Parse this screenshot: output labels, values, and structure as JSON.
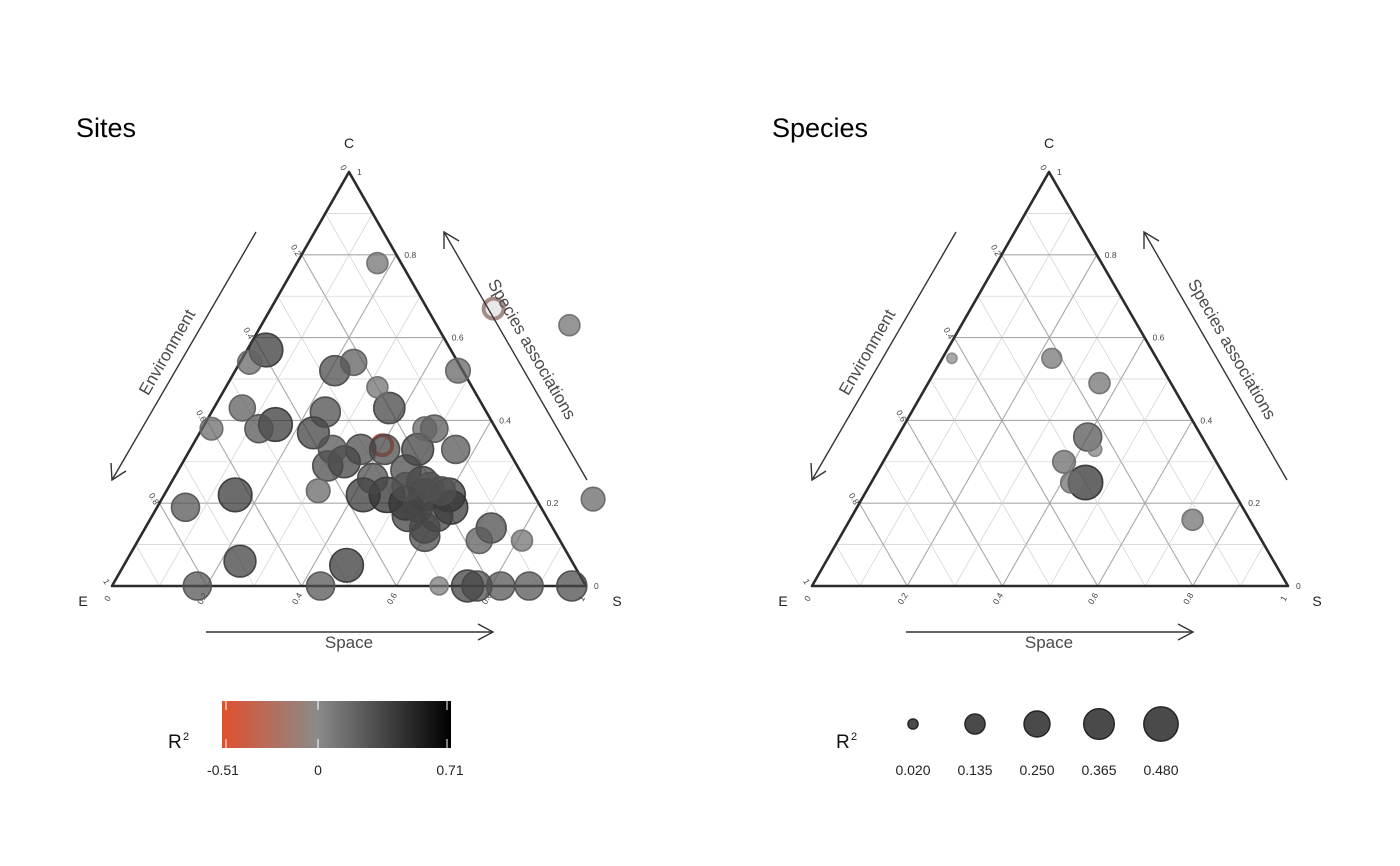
{
  "colors": {
    "negative": "#e0502e",
    "zero": "#8a8a8a",
    "positive": "#000000",
    "frame": "#2b2b2b",
    "grid": "#b5b5b5"
  },
  "legend_colorbar": {
    "title": "R",
    "sup": "2",
    "min_label": "-0.51",
    "mid_label": "0",
    "max_label": "0.71",
    "min": -0.51,
    "max": 0.71
  },
  "legend_size": {
    "title": "R",
    "sup": "2",
    "labels": [
      "0.020",
      "0.135",
      "0.250",
      "0.365",
      "0.480"
    ],
    "values": [
      0.02,
      0.135,
      0.25,
      0.365,
      0.48
    ]
  },
  "chart_data": [
    {
      "type": "scatter",
      "subtype": "ternary",
      "title": "Sites",
      "corners": {
        "top": "C",
        "left": "E",
        "right": "S"
      },
      "axis_names": {
        "bottom": "Space",
        "left": "Environment",
        "right": "Species associations"
      },
      "bottom_ticks": [
        "0",
        "0.2",
        "0.4",
        "0.6",
        "0.8",
        "1"
      ],
      "left_ticks": [
        "1",
        "0.8",
        "0.6",
        "0.4",
        "0.2",
        "0"
      ],
      "right_ticks": [
        "0",
        "0.2",
        "0.4",
        "0.6",
        "0.8",
        "1"
      ],
      "fields": [
        "S",
        "C",
        "r2"
      ],
      "points": [
        [
          0.17,
          0.78,
          0.15
        ],
        [
          0.04,
          0.57,
          0.45
        ],
        [
          0.02,
          0.54,
          0.2
        ],
        [
          0.21,
          0.52,
          0.35
        ],
        [
          0.32,
          0.48,
          0.15
        ],
        [
          0.24,
          0.42,
          0.35
        ],
        [
          0.47,
          0.52,
          0.22
        ],
        [
          0.47,
          0.67,
          -0.1
        ],
        [
          0.65,
          0.63,
          0.15
        ],
        [
          0.37,
          0.43,
          0.38
        ],
        [
          0.49,
          0.38,
          0.28
        ],
        [
          0.47,
          0.38,
          0.2
        ],
        [
          0.06,
          0.43,
          0.25
        ],
        [
          0.02,
          0.38,
          0.18
        ],
        [
          0.12,
          0.38,
          0.3
        ],
        [
          0.15,
          0.39,
          0.45
        ],
        [
          0.24,
          0.37,
          0.4
        ],
        [
          0.4,
          0.34,
          -0.51
        ],
        [
          0.36,
          0.33,
          0.35
        ],
        [
          0.41,
          0.33,
          0.35
        ],
        [
          0.48,
          0.33,
          0.4
        ],
        [
          0.3,
          0.33,
          0.3
        ],
        [
          0.56,
          0.33,
          0.3
        ],
        [
          0.34,
          0.3,
          0.4
        ],
        [
          0.31,
          0.29,
          0.35
        ],
        [
          0.48,
          0.28,
          0.35
        ],
        [
          0.42,
          0.26,
          0.35
        ],
        [
          0.5,
          0.24,
          0.3
        ],
        [
          0.53,
          0.25,
          0.4
        ],
        [
          0.55,
          0.24,
          0.3
        ],
        [
          0.55,
          0.22,
          0.4
        ],
        [
          0.58,
          0.23,
          0.3
        ],
        [
          0.6,
          0.22,
          0.45
        ],
        [
          0.47,
          0.22,
          0.5
        ],
        [
          0.52,
          0.2,
          0.45
        ],
        [
          0.42,
          0.22,
          0.45
        ],
        [
          0.32,
          0.23,
          0.2
        ],
        [
          0.55,
          0.19,
          0.35
        ],
        [
          0.62,
          0.19,
          0.45
        ],
        [
          0.6,
          0.17,
          0.4
        ],
        [
          0.54,
          0.17,
          0.4
        ],
        [
          0.59,
          0.14,
          0.35
        ],
        [
          0.6,
          0.12,
          0.35
        ],
        [
          0.73,
          0.14,
          0.35
        ],
        [
          0.72,
          0.11,
          0.25
        ],
        [
          0.81,
          0.11,
          0.15
        ],
        [
          0.15,
          0.22,
          0.45
        ],
        [
          0.06,
          0.19,
          0.3
        ],
        [
          0.24,
          0.06,
          0.4
        ],
        [
          0.47,
          0.05,
          0.45
        ],
        [
          0.18,
          0.0,
          0.3
        ],
        [
          0.44,
          0.0,
          0.3
        ],
        [
          0.69,
          0.0,
          0.1
        ],
        [
          0.75,
          0.0,
          0.4
        ],
        [
          0.77,
          0.0,
          0.35
        ],
        [
          0.82,
          0.0,
          0.3
        ],
        [
          0.88,
          0.0,
          0.3
        ],
        [
          0.97,
          0.0,
          0.35
        ],
        [
          0.91,
          0.21,
          0.2
        ],
        [
          0.24,
          0.54,
          0.25
        ]
      ]
    },
    {
      "type": "scatter",
      "subtype": "ternary",
      "title": "Species",
      "corners": {
        "top": "C",
        "left": "E",
        "right": "S"
      },
      "axis_names": {
        "bottom": "Space",
        "left": "Environment",
        "right": "Species associations"
      },
      "bottom_ticks": [
        "0",
        "0.2",
        "0.4",
        "0.6",
        "0.8",
        "1"
      ],
      "left_ticks": [
        "1",
        "0.8",
        "0.6",
        "0.4",
        "0.2",
        "0"
      ],
      "right_ticks": [
        "0",
        "0.2",
        "0.4",
        "0.6",
        "0.8",
        "1"
      ],
      "fields": [
        "S",
        "C",
        "r2"
      ],
      "points": [
        [
          0.23,
          0.55,
          0.13
        ],
        [
          0.36,
          0.49,
          0.15
        ],
        [
          0.02,
          0.55,
          0.02
        ],
        [
          0.4,
          0.36,
          0.3
        ],
        [
          0.43,
          0.33,
          0.05
        ],
        [
          0.38,
          0.3,
          0.18
        ],
        [
          0.45,
          0.25,
          0.48
        ],
        [
          0.42,
          0.25,
          0.15
        ],
        [
          0.72,
          0.16,
          0.15
        ]
      ]
    }
  ]
}
